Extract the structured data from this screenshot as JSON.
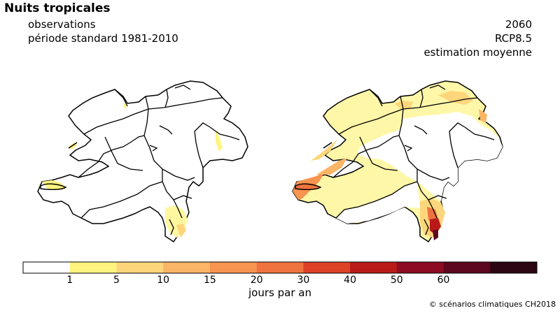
{
  "title": "Nuits tropicales",
  "left_panel": {
    "line1": "observations",
    "line2": "période standard 1981-2010"
  },
  "right_panel": {
    "line1": "2060",
    "line2": "RCP8.5",
    "line3": "estimation moyenne"
  },
  "legend": {
    "unit": "jours par an",
    "ticks": [
      "1",
      "5",
      "10",
      "15",
      "20",
      "30",
      "40",
      "50",
      "60"
    ],
    "colors": [
      "#ffffff",
      "#fff480",
      "#fdd67c",
      "#fbb566",
      "#f69450",
      "#ef733f",
      "#dd4126",
      "#ba1a17",
      "#8c0c21",
      "#5c081e",
      "#2c0612"
    ]
  },
  "credit": "© scénarios climatiques CH2018"
}
